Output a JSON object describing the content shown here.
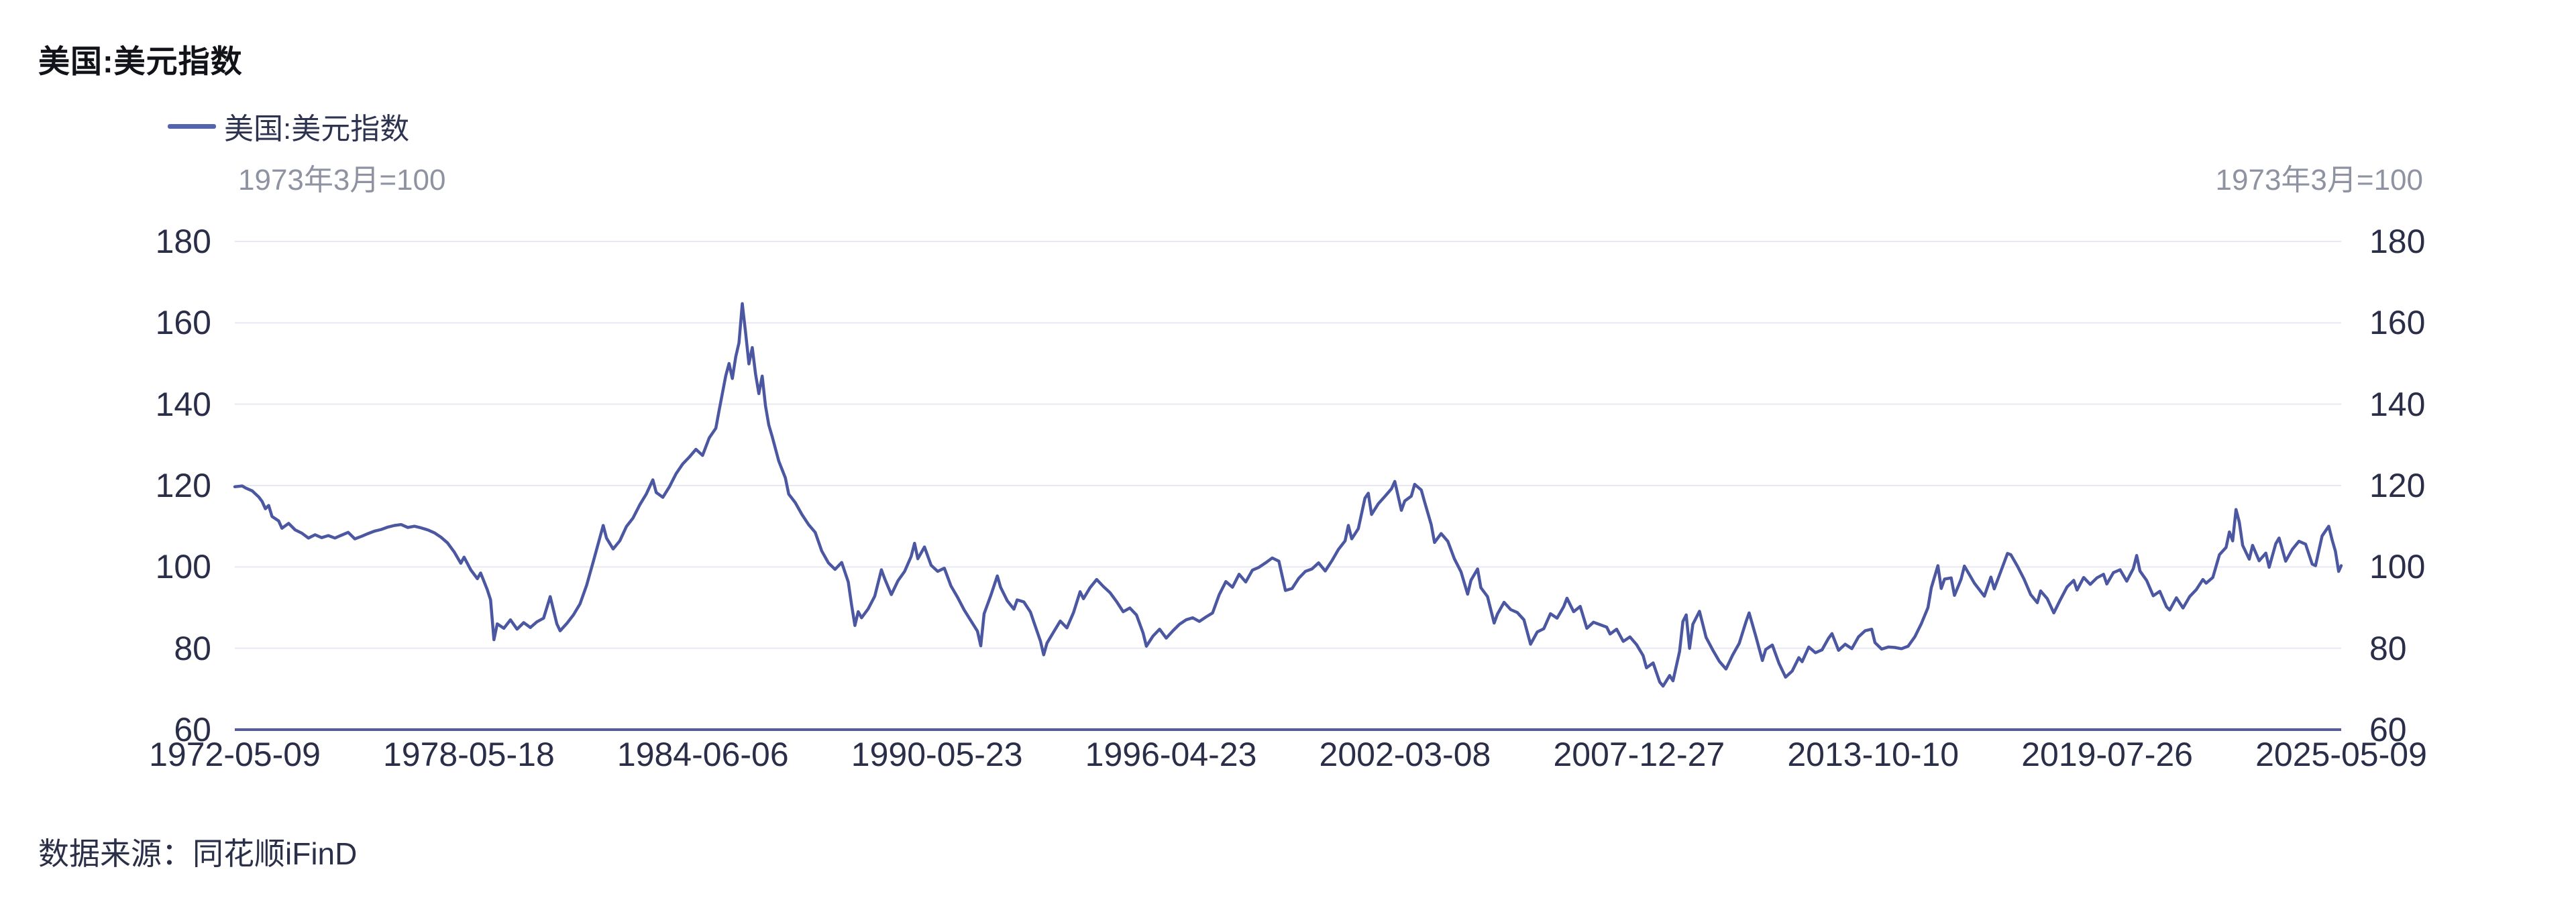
{
  "page": {
    "title": "美国:美元指数",
    "source": "数据来源：同花顺iFinD"
  },
  "legend": {
    "label": "美国:美元指数",
    "marker_color": "#5565ad"
  },
  "colors": {
    "line": "#4c57a1",
    "grid": "#e7e8f2",
    "axis_line": "#565d92",
    "tick_text": "#2a2e48",
    "subtitle_text": "#8f93a1"
  },
  "chart_data": {
    "type": "line",
    "title": "美国:美元指数",
    "series_name": "美国:美元指数",
    "unit_note": "1973年3月=100",
    "xlabel": "",
    "ylabel": "",
    "ylim": [
      60,
      180
    ],
    "y_ticks": [
      180,
      160,
      140,
      120,
      100,
      80,
      60
    ],
    "x_tick_labels": [
      "1972-05-09",
      "1978-05-18",
      "1984-06-06",
      "1990-05-23",
      "1996-04-23",
      "2002-03-08",
      "2007-12-27",
      "2013-10-10",
      "2019-07-26",
      "2025-05-09"
    ],
    "grid": true,
    "legend_position": "top-left",
    "points": [
      [
        "1972-05-09",
        119.7
      ],
      [
        "1972-07",
        119.9
      ],
      [
        "1972-08",
        119.4
      ],
      [
        "1972-10",
        118.7
      ],
      [
        "1972-12",
        117.2
      ],
      [
        "1973-01",
        116.1
      ],
      [
        "1973-02",
        114.3
      ],
      [
        "1973-03",
        115.1
      ],
      [
        "1973-04",
        112.4
      ],
      [
        "1973-06",
        111.3
      ],
      [
        "1973-07",
        109.5
      ],
      [
        "1973-09",
        110.7
      ],
      [
        "1973-11",
        109.1
      ],
      [
        "1974-01",
        108.3
      ],
      [
        "1974-03",
        107.1
      ],
      [
        "1974-05",
        107.9
      ],
      [
        "1974-07",
        107.2
      ],
      [
        "1974-09",
        107.7
      ],
      [
        "1974-11",
        107.1
      ],
      [
        "1975-01",
        107.8
      ],
      [
        "1975-03",
        108.5
      ],
      [
        "1975-05",
        106.9
      ],
      [
        "1975-07",
        107.5
      ],
      [
        "1975-09",
        108.2
      ],
      [
        "1975-11",
        108.8
      ],
      [
        "1976-01",
        109.2
      ],
      [
        "1976-03",
        109.8
      ],
      [
        "1976-05",
        110.2
      ],
      [
        "1976-07",
        110.4
      ],
      [
        "1976-09",
        109.7
      ],
      [
        "1976-11",
        110.0
      ],
      [
        "1977-01",
        109.6
      ],
      [
        "1977-03",
        109.1
      ],
      [
        "1977-05",
        108.4
      ],
      [
        "1977-07",
        107.3
      ],
      [
        "1977-09",
        105.9
      ],
      [
        "1977-11",
        103.7
      ],
      [
        "1978-01",
        100.9
      ],
      [
        "1978-02",
        102.4
      ],
      [
        "1978-04",
        99.3
      ],
      [
        "1978-06",
        97.1
      ],
      [
        "1978-07",
        98.5
      ],
      [
        "1978-09",
        94.4
      ],
      [
        "1978-10",
        91.9
      ],
      [
        "1978-11",
        82.1
      ],
      [
        "1978-12",
        86.0
      ],
      [
        "1979-02",
        84.9
      ],
      [
        "1979-04",
        87.0
      ],
      [
        "1979-06",
        84.7
      ],
      [
        "1979-08",
        86.3
      ],
      [
        "1979-10",
        85.1
      ],
      [
        "1979-12",
        86.5
      ],
      [
        "1980-02",
        87.4
      ],
      [
        "1980-04",
        92.7
      ],
      [
        "1980-06",
        86.0
      ],
      [
        "1980-07",
        84.3
      ],
      [
        "1980-09",
        86.1
      ],
      [
        "1980-11",
        88.2
      ],
      [
        "1981-01",
        90.9
      ],
      [
        "1981-03",
        95.5
      ],
      [
        "1981-05",
        101.3
      ],
      [
        "1981-08",
        110.2
      ],
      [
        "1981-09",
        107.1
      ],
      [
        "1981-11",
        104.4
      ],
      [
        "1982-01",
        106.4
      ],
      [
        "1982-03",
        109.9
      ],
      [
        "1982-05",
        112.0
      ],
      [
        "1982-07",
        115.2
      ],
      [
        "1982-09",
        117.9
      ],
      [
        "1982-11",
        121.4
      ],
      [
        "1982-12",
        118.3
      ],
      [
        "1983-02",
        117.1
      ],
      [
        "1983-04",
        119.7
      ],
      [
        "1983-06",
        122.9
      ],
      [
        "1983-08",
        125.3
      ],
      [
        "1983-10",
        127.0
      ],
      [
        "1983-12",
        128.9
      ],
      [
        "1984-02",
        127.4
      ],
      [
        "1984-04",
        131.7
      ],
      [
        "1984-06",
        134.1
      ],
      [
        "1984-07",
        138.5
      ],
      [
        "1984-09",
        147.0
      ],
      [
        "1984-10",
        150.0
      ],
      [
        "1984-11",
        146.3
      ],
      [
        "1984-12",
        151.6
      ],
      [
        "1985-01",
        155.1
      ],
      [
        "1985-02",
        164.7
      ],
      [
        "1985-03",
        157.5
      ],
      [
        "1985-04",
        149.9
      ],
      [
        "1985-05",
        153.9
      ],
      [
        "1985-06",
        147.4
      ],
      [
        "1985-07",
        142.6
      ],
      [
        "1985-08",
        146.9
      ],
      [
        "1985-09",
        139.6
      ],
      [
        "1985-10",
        134.9
      ],
      [
        "1985-11",
        132.1
      ],
      [
        "1986-01",
        126.0
      ],
      [
        "1986-03",
        121.9
      ],
      [
        "1986-04",
        117.9
      ],
      [
        "1986-06",
        115.8
      ],
      [
        "1986-08",
        112.9
      ],
      [
        "1986-10",
        110.4
      ],
      [
        "1986-12",
        108.5
      ],
      [
        "1987-02",
        103.9
      ],
      [
        "1987-04",
        101.0
      ],
      [
        "1987-06",
        99.4
      ],
      [
        "1987-08",
        101.1
      ],
      [
        "1987-10",
        96.3
      ],
      [
        "1987-11",
        90.6
      ],
      [
        "1987-12",
        85.6
      ],
      [
        "1988-01",
        89.0
      ],
      [
        "1988-02",
        87.5
      ],
      [
        "1988-04",
        89.7
      ],
      [
        "1988-06",
        92.8
      ],
      [
        "1988-08",
        99.3
      ],
      [
        "1988-09",
        97.1
      ],
      [
        "1988-11",
        93.2
      ],
      [
        "1989-01",
        96.6
      ],
      [
        "1989-03",
        98.9
      ],
      [
        "1989-05",
        102.6
      ],
      [
        "1989-06",
        105.8
      ],
      [
        "1989-07",
        102.0
      ],
      [
        "1989-09",
        104.9
      ],
      [
        "1989-11",
        100.4
      ],
      [
        "1990-01",
        98.9
      ],
      [
        "1990-03",
        99.7
      ],
      [
        "1990-05",
        95.3
      ],
      [
        "1990-07",
        92.5
      ],
      [
        "1990-09",
        89.4
      ],
      [
        "1990-11",
        86.8
      ],
      [
        "1991-01",
        84.2
      ],
      [
        "1991-02",
        80.6
      ],
      [
        "1991-03",
        88.5
      ],
      [
        "1991-05",
        92.9
      ],
      [
        "1991-07",
        97.8
      ],
      [
        "1991-08",
        95.0
      ],
      [
        "1991-10",
        91.7
      ],
      [
        "1991-12",
        89.6
      ],
      [
        "1992-01",
        91.9
      ],
      [
        "1992-03",
        91.4
      ],
      [
        "1992-05",
        88.9
      ],
      [
        "1992-06",
        86.5
      ],
      [
        "1992-08",
        81.8
      ],
      [
        "1992-09",
        78.4
      ],
      [
        "1992-10",
        81.3
      ],
      [
        "1992-12",
        84.0
      ],
      [
        "1993-02",
        86.7
      ],
      [
        "1993-04",
        85.0
      ],
      [
        "1993-06",
        88.8
      ],
      [
        "1993-08",
        93.9
      ],
      [
        "1993-09",
        92.2
      ],
      [
        "1993-11",
        94.9
      ],
      [
        "1994-01",
        96.9
      ],
      [
        "1994-03",
        95.2
      ],
      [
        "1994-05",
        93.7
      ],
      [
        "1994-07",
        91.5
      ],
      [
        "1994-09",
        89.0
      ],
      [
        "1994-11",
        89.9
      ],
      [
        "1995-01",
        88.2
      ],
      [
        "1995-03",
        83.8
      ],
      [
        "1995-04",
        80.5
      ],
      [
        "1995-06",
        83.0
      ],
      [
        "1995-08",
        84.7
      ],
      [
        "1995-10",
        82.5
      ],
      [
        "1995-12",
        84.3
      ],
      [
        "1996-02",
        85.9
      ],
      [
        "1996-04",
        87.0
      ],
      [
        "1996-06",
        87.5
      ],
      [
        "1996-08",
        86.6
      ],
      [
        "1996-10",
        87.7
      ],
      [
        "1996-12",
        88.7
      ],
      [
        "1997-02",
        93.2
      ],
      [
        "1997-04",
        96.4
      ],
      [
        "1997-06",
        95.0
      ],
      [
        "1997-08",
        98.2
      ],
      [
        "1997-10",
        96.3
      ],
      [
        "1997-12",
        99.2
      ],
      [
        "1998-02",
        99.9
      ],
      [
        "1998-04",
        101.0
      ],
      [
        "1998-06",
        102.2
      ],
      [
        "1998-08",
        101.4
      ],
      [
        "1998-10",
        94.2
      ],
      [
        "1998-12",
        94.7
      ],
      [
        "1999-02",
        97.2
      ],
      [
        "1999-04",
        98.9
      ],
      [
        "1999-06",
        99.5
      ],
      [
        "1999-08",
        101.0
      ],
      [
        "1999-10",
        99.0
      ],
      [
        "1999-12",
        101.5
      ],
      [
        "2000-02",
        104.3
      ],
      [
        "2000-04",
        106.4
      ],
      [
        "2000-05",
        110.2
      ],
      [
        "2000-06",
        106.9
      ],
      [
        "2000-08",
        109.4
      ],
      [
        "2000-10",
        116.9
      ],
      [
        "2000-11",
        118.1
      ],
      [
        "2000-12",
        112.9
      ],
      [
        "2001-02",
        115.5
      ],
      [
        "2001-04",
        117.3
      ],
      [
        "2001-06",
        119.2
      ],
      [
        "2001-07",
        121.0
      ],
      [
        "2001-09",
        113.9
      ],
      [
        "2001-10",
        116.2
      ],
      [
        "2001-12",
        117.4
      ],
      [
        "2002-01",
        120.3
      ],
      [
        "2002-03",
        118.9
      ],
      [
        "2002-04",
        116.0
      ],
      [
        "2002-06",
        110.4
      ],
      [
        "2002-07",
        106.0
      ],
      [
        "2002-09",
        108.2
      ],
      [
        "2002-11",
        106.3
      ],
      [
        "2003-01",
        102.0
      ],
      [
        "2003-03",
        98.8
      ],
      [
        "2003-05",
        93.3
      ],
      [
        "2003-06",
        96.7
      ],
      [
        "2003-08",
        99.5
      ],
      [
        "2003-09",
        94.9
      ],
      [
        "2003-11",
        92.7
      ],
      [
        "2004-01",
        86.2
      ],
      [
        "2004-02",
        88.4
      ],
      [
        "2004-04",
        91.3
      ],
      [
        "2004-06",
        89.5
      ],
      [
        "2004-08",
        88.8
      ],
      [
        "2004-10",
        87.0
      ],
      [
        "2004-12",
        81.0
      ],
      [
        "2005-02",
        84.0
      ],
      [
        "2005-04",
        84.8
      ],
      [
        "2005-06",
        88.5
      ],
      [
        "2005-08",
        87.4
      ],
      [
        "2005-10",
        90.2
      ],
      [
        "2005-11",
        92.3
      ],
      [
        "2006-01",
        89.0
      ],
      [
        "2006-03",
        90.3
      ],
      [
        "2006-05",
        84.9
      ],
      [
        "2006-07",
        86.4
      ],
      [
        "2006-09",
        85.8
      ],
      [
        "2006-11",
        85.2
      ],
      [
        "2006-12",
        83.5
      ],
      [
        "2007-02",
        84.7
      ],
      [
        "2007-04",
        81.7
      ],
      [
        "2007-06",
        82.8
      ],
      [
        "2007-08",
        80.9
      ],
      [
        "2007-10",
        78.2
      ],
      [
        "2007-11",
        75.2
      ],
      [
        "2008-01",
        76.4
      ],
      [
        "2008-03",
        71.7
      ],
      [
        "2008-04",
        70.7
      ],
      [
        "2008-06",
        73.3
      ],
      [
        "2008-07",
        72.0
      ],
      [
        "2008-09",
        79.2
      ],
      [
        "2008-10",
        86.6
      ],
      [
        "2008-11",
        88.2
      ],
      [
        "2008-12",
        80.0
      ],
      [
        "2009-01",
        85.9
      ],
      [
        "2009-03",
        89.1
      ],
      [
        "2009-05",
        82.7
      ],
      [
        "2009-07",
        79.6
      ],
      [
        "2009-09",
        76.8
      ],
      [
        "2009-11",
        74.9
      ],
      [
        "2010-01",
        78.3
      ],
      [
        "2010-03",
        81.2
      ],
      [
        "2010-05",
        86.4
      ],
      [
        "2010-06",
        88.7
      ],
      [
        "2010-08",
        83.0
      ],
      [
        "2010-10",
        77.0
      ],
      [
        "2010-11",
        79.7
      ],
      [
        "2011-01",
        80.8
      ],
      [
        "2011-03",
        76.3
      ],
      [
        "2011-05",
        72.9
      ],
      [
        "2011-07",
        74.4
      ],
      [
        "2011-09",
        77.7
      ],
      [
        "2011-10",
        76.7
      ],
      [
        "2011-12",
        80.3
      ],
      [
        "2012-02",
        78.9
      ],
      [
        "2012-04",
        79.6
      ],
      [
        "2012-06",
        82.5
      ],
      [
        "2012-07",
        83.6
      ],
      [
        "2012-09",
        79.5
      ],
      [
        "2012-11",
        81.0
      ],
      [
        "2013-01",
        79.9
      ],
      [
        "2013-03",
        82.8
      ],
      [
        "2013-05",
        84.3
      ],
      [
        "2013-07",
        84.7
      ],
      [
        "2013-08",
        81.4
      ],
      [
        "2013-10",
        79.8
      ],
      [
        "2013-12",
        80.3
      ],
      [
        "2014-02",
        80.2
      ],
      [
        "2014-04",
        79.9
      ],
      [
        "2014-06",
        80.5
      ],
      [
        "2014-08",
        82.8
      ],
      [
        "2014-10",
        86.1
      ],
      [
        "2014-12",
        90.0
      ],
      [
        "2015-01",
        94.9
      ],
      [
        "2015-03",
        100.3
      ],
      [
        "2015-04",
        94.7
      ],
      [
        "2015-05",
        97.0
      ],
      [
        "2015-07",
        97.3
      ],
      [
        "2015-08",
        93.0
      ],
      [
        "2015-10",
        97.0
      ],
      [
        "2015-11",
        100.2
      ],
      [
        "2015-12",
        98.8
      ],
      [
        "2016-02",
        96.0
      ],
      [
        "2016-05",
        92.8
      ],
      [
        "2016-07",
        97.5
      ],
      [
        "2016-08",
        94.6
      ],
      [
        "2016-10",
        98.9
      ],
      [
        "2016-12",
        103.3
      ],
      [
        "2017-01",
        103.0
      ],
      [
        "2017-03",
        100.2
      ],
      [
        "2017-05",
        97.0
      ],
      [
        "2017-07",
        93.2
      ],
      [
        "2017-09",
        91.2
      ],
      [
        "2017-10",
        94.1
      ],
      [
        "2017-12",
        92.2
      ],
      [
        "2018-02",
        88.7
      ],
      [
        "2018-04",
        92.0
      ],
      [
        "2018-06",
        95.1
      ],
      [
        "2018-08",
        96.7
      ],
      [
        "2018-09",
        94.3
      ],
      [
        "2018-11",
        97.4
      ],
      [
        "2019-01",
        95.7
      ],
      [
        "2019-03",
        97.3
      ],
      [
        "2019-05",
        98.2
      ],
      [
        "2019-06",
        95.8
      ],
      [
        "2019-08",
        98.6
      ],
      [
        "2019-10",
        99.3
      ],
      [
        "2019-12",
        96.5
      ],
      [
        "2020-02",
        99.6
      ],
      [
        "2020-03",
        102.8
      ],
      [
        "2020-04",
        99.0
      ],
      [
        "2020-06",
        96.7
      ],
      [
        "2020-08",
        92.9
      ],
      [
        "2020-10",
        94.0
      ],
      [
        "2020-12",
        90.2
      ],
      [
        "2021-01",
        89.4
      ],
      [
        "2021-03",
        92.4
      ],
      [
        "2021-05",
        89.9
      ],
      [
        "2021-07",
        92.7
      ],
      [
        "2021-09",
        94.4
      ],
      [
        "2021-11",
        96.9
      ],
      [
        "2021-12",
        96.0
      ],
      [
        "2022-02",
        97.4
      ],
      [
        "2022-04",
        103.0
      ],
      [
        "2022-06",
        104.8
      ],
      [
        "2022-07",
        108.6
      ],
      [
        "2022-08",
        106.4
      ],
      [
        "2022-09",
        114.1
      ],
      [
        "2022-10",
        111.0
      ],
      [
        "2022-11",
        105.3
      ],
      [
        "2023-01",
        101.9
      ],
      [
        "2023-02",
        105.3
      ],
      [
        "2023-04",
        101.5
      ],
      [
        "2023-06",
        103.4
      ],
      [
        "2023-07",
        99.9
      ],
      [
        "2023-09",
        105.7
      ],
      [
        "2023-10",
        107.1
      ],
      [
        "2023-12",
        101.4
      ],
      [
        "2024-02",
        104.3
      ],
      [
        "2024-04",
        106.3
      ],
      [
        "2024-06",
        105.6
      ],
      [
        "2024-08",
        100.7
      ],
      [
        "2024-09",
        100.3
      ],
      [
        "2024-11",
        107.6
      ],
      [
        "2025-01",
        110.0
      ],
      [
        "2025-02",
        106.7
      ],
      [
        "2025-03",
        103.9
      ],
      [
        "2025-04",
        98.9
      ],
      [
        "2025-05-09",
        100.3
      ]
    ]
  }
}
